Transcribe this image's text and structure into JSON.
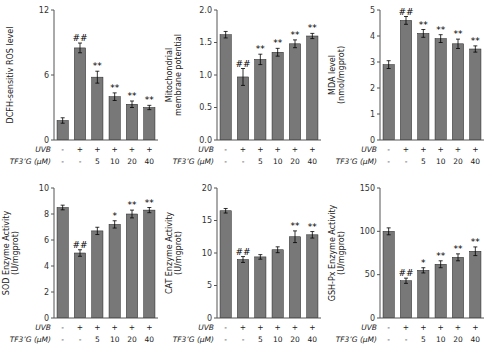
{
  "chart_data": [
    {
      "type": "bar",
      "ylabel": "DCFH-sensitiv ROS level",
      "ylim": [
        0,
        12
      ],
      "yticks": [
        0,
        6,
        12
      ],
      "categories": [
        [
          "-",
          "-"
        ],
        [
          "+",
          "-"
        ],
        [
          "+",
          "5"
        ],
        [
          "+",
          "10"
        ],
        [
          "+",
          "20"
        ],
        [
          "+",
          "40"
        ]
      ],
      "category_labels": [
        "UVB",
        "TF3’G (μM)"
      ],
      "values": [
        1.8,
        8.5,
        5.8,
        4.0,
        3.3,
        3.0
      ],
      "errors": [
        0.25,
        0.45,
        0.55,
        0.35,
        0.3,
        0.2
      ],
      "annotations": [
        null,
        "##",
        "**",
        "**",
        "**",
        "**"
      ],
      "color": "#787878"
    },
    {
      "type": "bar",
      "ylabel": "Mitochondrial\nmembrane potential",
      "ylim": [
        0.0,
        2.0
      ],
      "yticks": [
        {
          "value": 0.0,
          "label": "0.0"
        },
        0.5,
        {
          "value": 1.0,
          "label": "1.0"
        },
        1.5,
        {
          "value": 2.0,
          "label": "2.0"
        }
      ],
      "categories": [
        [
          "-",
          "-"
        ],
        [
          "+",
          "-"
        ],
        [
          "+",
          "5"
        ],
        [
          "+",
          "10"
        ],
        [
          "+",
          "20"
        ],
        [
          "+",
          "40"
        ]
      ],
      "category_labels": [
        "UVB",
        "TF3’G (μM)"
      ],
      "values": [
        1.62,
        0.97,
        1.24,
        1.35,
        1.48,
        1.6
      ],
      "errors": [
        0.05,
        0.13,
        0.08,
        0.06,
        0.06,
        0.04
      ],
      "annotations": [
        null,
        "##",
        "**",
        "**",
        "**",
        "**"
      ],
      "color": "#787878"
    },
    {
      "type": "bar",
      "ylabel": "MDA level\n(nmol/mgprot)",
      "ylim": [
        0,
        5
      ],
      "yticks": [
        0,
        1,
        2,
        3,
        4,
        5
      ],
      "categories": [
        [
          "-",
          "-"
        ],
        [
          "+",
          "-"
        ],
        [
          "+",
          "5"
        ],
        [
          "+",
          "10"
        ],
        [
          "+",
          "20"
        ],
        [
          "+",
          "40"
        ]
      ],
      "category_labels": [
        "UVB",
        "TF3’G (μM)"
      ],
      "values": [
        2.9,
        4.6,
        4.1,
        3.9,
        3.7,
        3.5
      ],
      "errors": [
        0.15,
        0.15,
        0.15,
        0.15,
        0.18,
        0.12
      ],
      "annotations": [
        null,
        "##",
        "**",
        "**",
        "**",
        "**"
      ],
      "color": "#787878"
    },
    {
      "type": "bar",
      "ylabel": "SOD Enzyme Activity\n(U/mgprot)",
      "ylim": [
        0,
        10
      ],
      "yticks": [
        0,
        2,
        4,
        6,
        8,
        10
      ],
      "categories": [
        [
          "-",
          "-"
        ],
        [
          "+",
          "-"
        ],
        [
          "+",
          "5"
        ],
        [
          "+",
          "10"
        ],
        [
          "+",
          "20"
        ],
        [
          "+",
          "40"
        ]
      ],
      "category_labels": [
        "UVB",
        "TF3’G (μM)"
      ],
      "values": [
        8.5,
        5.0,
        6.7,
        7.2,
        8.0,
        8.3
      ],
      "errors": [
        0.18,
        0.25,
        0.28,
        0.28,
        0.3,
        0.2
      ],
      "annotations": [
        null,
        "##",
        null,
        "*",
        "**",
        "**"
      ],
      "color": "#787878"
    },
    {
      "type": "bar",
      "ylabel": "CAT Enzyme Activity\n(U/mgprot)",
      "ylim": [
        0,
        20
      ],
      "yticks": [
        0,
        5,
        10,
        15,
        20
      ],
      "categories": [
        [
          "-",
          "-"
        ],
        [
          "+",
          "-"
        ],
        [
          "+",
          "5"
        ],
        [
          "+",
          "10"
        ],
        [
          "+",
          "20"
        ],
        [
          "+",
          "40"
        ]
      ],
      "category_labels": [
        "UVB",
        "TF3’G (μM)"
      ],
      "values": [
        16.5,
        9.0,
        9.4,
        10.5,
        12.5,
        12.8
      ],
      "errors": [
        0.35,
        0.45,
        0.35,
        0.45,
        0.9,
        0.5
      ],
      "annotations": [
        null,
        "##",
        null,
        null,
        "**",
        "**"
      ],
      "color": "#787878"
    },
    {
      "type": "bar",
      "ylabel": "GSH-Px Enzyme Activity\n(U/mgprot)",
      "ylim": [
        0,
        150
      ],
      "yticks": [
        0,
        50,
        100,
        150
      ],
      "categories": [
        [
          "-",
          "-"
        ],
        [
          "+",
          "-"
        ],
        [
          "+",
          "5"
        ],
        [
          "+",
          "10"
        ],
        [
          "+",
          "20"
        ],
        [
          "+",
          "40"
        ]
      ],
      "category_labels": [
        "UVB",
        "TF3’G (μM)"
      ],
      "values": [
        100,
        43,
        55,
        62,
        70,
        77
      ],
      "errors": [
        4,
        3,
        3,
        4,
        4,
        5
      ],
      "annotations": [
        null,
        "##",
        "*",
        "**",
        "**",
        "**"
      ],
      "color": "#787878"
    }
  ]
}
